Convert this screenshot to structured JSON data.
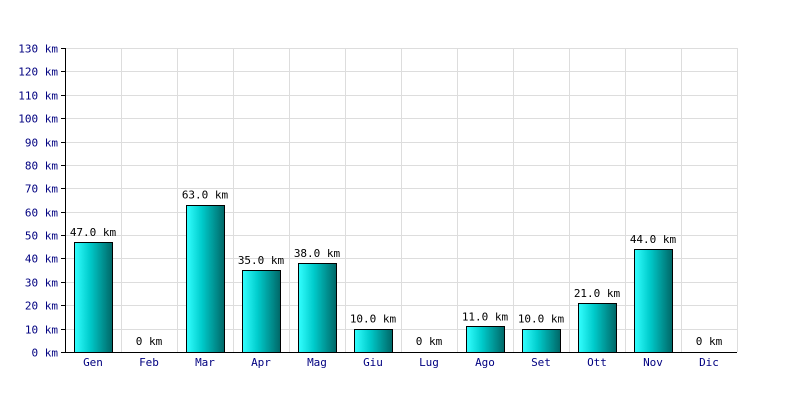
{
  "chart_data": {
    "type": "bar",
    "title": "",
    "xlabel": "",
    "ylabel": "",
    "categories": [
      "Gen",
      "Feb",
      "Mar",
      "Apr",
      "Mag",
      "Giu",
      "Lug",
      "Ago",
      "Set",
      "Ott",
      "Nov",
      "Dic"
    ],
    "values": [
      47,
      0,
      63,
      35,
      38,
      10,
      0,
      11,
      10,
      21,
      44,
      0
    ],
    "data_labels": [
      "47.0 km",
      "0 km",
      "63.0 km",
      "35.0 km",
      "38.0 km",
      "10.0 km",
      "0 km",
      "11.0 km",
      "10.0 km",
      "21.0 km",
      "44.0 km",
      "0 km"
    ],
    "ylim": [
      0,
      130
    ],
    "y_ticks": [
      0,
      10,
      20,
      30,
      40,
      50,
      60,
      70,
      80,
      90,
      100,
      110,
      120,
      130
    ],
    "y_tick_labels": [
      "0 km",
      "10 km",
      "20 km",
      "30 km",
      "40 km",
      "50 km",
      "60 km",
      "70 km",
      "80 km",
      "90 km",
      "100 km",
      "110 km",
      "120 km",
      "130 km"
    ],
    "grid": true,
    "legend": "none",
    "colors": {
      "bar_light": "#33ffff",
      "bar_mid": "#00cccc",
      "bar_dark": "#006666",
      "bar_outline": "#000000",
      "grid": "#dddddd",
      "axis": "#000000",
      "tick_text": "#000080"
    }
  }
}
